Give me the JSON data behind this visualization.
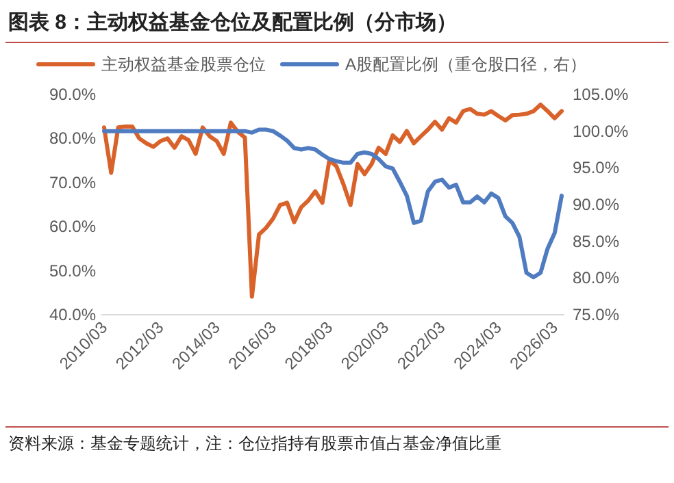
{
  "chart_data": {
    "type": "line",
    "title": "图表 8：主动权益基金仓位及配置比例（分市场）",
    "categories": [
      "2010/03",
      null,
      null,
      null,
      null,
      null,
      null,
      null,
      "2012/03",
      null,
      null,
      null,
      null,
      null,
      null,
      null,
      "2014/03",
      null,
      null,
      null,
      null,
      null,
      null,
      null,
      "2016/03",
      null,
      null,
      null,
      null,
      null,
      null,
      null,
      "2018/03",
      null,
      null,
      null,
      null,
      null,
      null,
      null,
      "2020/03",
      null,
      null,
      null,
      null,
      null,
      null,
      null,
      "2022/03",
      null,
      null,
      null,
      null,
      null,
      null,
      null,
      "2024/03",
      null,
      null,
      null,
      null,
      null,
      null,
      null,
      "2026/03",
      null
    ],
    "series": [
      {
        "name": "主动权益基金股票仓位",
        "color": "#d9622b",
        "values": [
          82.5,
          72.2,
          82.5,
          82.7,
          82.7,
          80,
          78.9,
          78.1,
          79.4,
          80,
          77.9,
          80.5,
          79.6,
          76.5,
          82.5,
          80.5,
          79.4,
          76.5,
          83.6,
          81.5,
          80.2,
          44.1,
          58.2,
          59.7,
          61.8,
          64.9,
          65.4,
          61,
          64.4,
          65.9,
          68,
          65.4,
          75.1,
          73.7,
          69.6,
          64.9,
          74.2,
          71.9,
          74.2,
          77.9,
          76.5,
          80.7,
          79.2,
          81.7,
          78.9,
          80.5,
          82,
          83.8,
          82,
          84.6,
          83.6,
          86.2,
          86.7,
          85.6,
          85.4,
          86.2,
          85.1,
          84.1,
          85.3,
          85.4,
          85.6,
          86.2,
          87.7,
          86.2,
          84.6,
          86.2
        ]
      },
      {
        "name": "A股配置比例（重仓股口径，右）",
        "color": "#4f7bc0",
        "axis": "y2",
        "values": [
          100,
          100,
          100,
          100,
          100,
          100,
          100,
          100,
          100,
          100,
          100,
          100,
          100,
          100,
          100,
          100,
          100,
          100,
          100,
          100,
          100,
          99.8,
          100.2,
          100.2,
          100,
          99.4,
          98.7,
          97.7,
          97.5,
          97.7,
          97.5,
          96.8,
          96.2,
          95.9,
          95.7,
          95.7,
          96.9,
          97.1,
          96.9,
          96.2,
          95.2,
          94.9,
          93.1,
          91.2,
          87.5,
          87.8,
          91.8,
          93.1,
          93.4,
          92.3,
          92.7,
          90.3,
          90.3,
          91.1,
          90.3,
          91.5,
          90.9,
          88.4,
          87.5,
          85.6,
          80.7,
          80.1,
          80.7,
          84,
          86.1,
          91.2
        ]
      }
    ],
    "ylim": [
      40,
      90
    ],
    "yticks": [
      {
        "value": 40,
        "label": "40.0%"
      },
      {
        "value": 50,
        "label": "50.0%"
      },
      {
        "value": 60,
        "label": "60.0%"
      },
      {
        "value": 70,
        "label": "70.0%"
      },
      {
        "value": 80,
        "label": "80.0%"
      },
      {
        "value": 90,
        "label": "90.0%"
      }
    ],
    "y2lim": [
      75,
      105
    ],
    "y2ticks": [
      {
        "value": 75,
        "label": "75.0%"
      },
      {
        "value": 80,
        "label": "80.0%"
      },
      {
        "value": 85,
        "label": "85.0%"
      },
      {
        "value": 90,
        "label": "90.0%"
      },
      {
        "value": 95,
        "label": "95.0%"
      },
      {
        "value": 100,
        "label": "100.0%"
      },
      {
        "value": 105,
        "label": "105.0%"
      }
    ],
    "legend": "top",
    "grid": false,
    "annotations": [
      "资料来源：基金专题统计，注：仓位指持有股票市值占基金净值比重"
    ]
  }
}
